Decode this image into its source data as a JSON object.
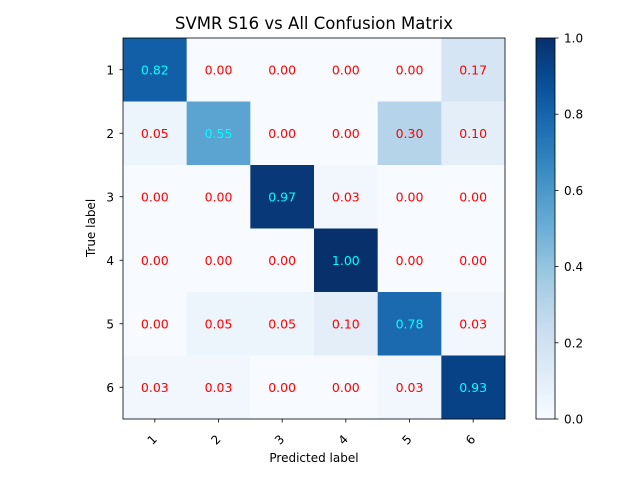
{
  "chart_data": {
    "type": "heatmap",
    "title": "SVMR S16 vs All Confusion Matrix",
    "xlabel": "Predicted label",
    "ylabel": "True label",
    "x_categories": [
      "1",
      "2",
      "3",
      "4",
      "5",
      "6"
    ],
    "y_categories": [
      "1",
      "2",
      "3",
      "4",
      "5",
      "6"
    ],
    "values": [
      [
        0.82,
        0.0,
        0.0,
        0.0,
        0.0,
        0.17
      ],
      [
        0.05,
        0.55,
        0.0,
        0.0,
        0.3,
        0.1
      ],
      [
        0.0,
        0.0,
        0.97,
        0.03,
        0.0,
        0.0
      ],
      [
        0.0,
        0.0,
        0.0,
        1.0,
        0.0,
        0.0
      ],
      [
        0.0,
        0.05,
        0.05,
        0.1,
        0.78,
        0.03
      ],
      [
        0.03,
        0.03,
        0.0,
        0.0,
        0.03,
        0.93
      ]
    ],
    "labels": [
      [
        "0.82",
        "0.00",
        "0.00",
        "0.00",
        "0.00",
        "0.17"
      ],
      [
        "0.05",
        "0.55",
        "0.00",
        "0.00",
        "0.30",
        "0.10"
      ],
      [
        "0.00",
        "0.00",
        "0.97",
        "0.03",
        "0.00",
        "0.00"
      ],
      [
        "0.00",
        "0.00",
        "0.00",
        "1.00",
        "0.00",
        "0.00"
      ],
      [
        "0.00",
        "0.05",
        "0.05",
        "0.10",
        "0.78",
        "0.03"
      ],
      [
        "0.03",
        "0.03",
        "0.00",
        "0.00",
        "0.03",
        "0.93"
      ]
    ],
    "colorscale": "Blues",
    "vmin": 0.0,
    "vmax": 1.0,
    "colorbar_ticks": [
      "0.0",
      "0.2",
      "0.4",
      "0.6",
      "0.8",
      "1.0"
    ],
    "high_value_label_color": "#00ffff",
    "low_value_label_color": "#ff0000",
    "label_color_threshold": 0.5
  }
}
